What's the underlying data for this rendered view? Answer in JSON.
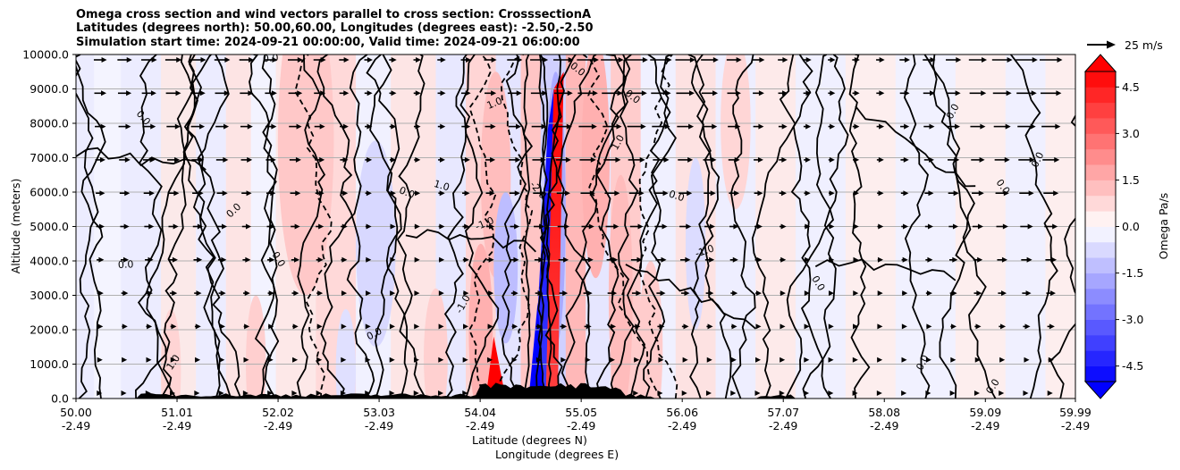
{
  "chart_data": {
    "type": "heatmap",
    "title_lines": [
      "Omega cross section and wind vectors parallel to cross section: CrosssectionA",
      "Latitudes (degrees north): 50.00,60.00, Longitudes (degrees east): -2.50,-2.50",
      "Simulation start time: 2024-09-21 00:00:00, Valid time: 2024-09-21 06:00:00"
    ],
    "ylabel": "Altitude (meters)",
    "xlabel": "Latitude (degrees N)",
    "xlabel2": "Longitude (degrees E)",
    "ylim": [
      0,
      10000
    ],
    "y_ticks": [
      "0.0",
      "1000.0",
      "2000.0",
      "3000.0",
      "4000.0",
      "5000.0",
      "6000.0",
      "7000.0",
      "8000.0",
      "9000.0",
      "10000.0"
    ],
    "x_ticks": [
      {
        "lat": "50.00",
        "lon": "-2.49"
      },
      {
        "lat": "51.01",
        "lon": "-2.49"
      },
      {
        "lat": "52.02",
        "lon": "-2.49"
      },
      {
        "lat": "53.03",
        "lon": "-2.49"
      },
      {
        "lat": "54.04",
        "lon": "-2.49"
      },
      {
        "lat": "55.05",
        "lon": "-2.49"
      },
      {
        "lat": "56.06",
        "lon": "-2.49"
      },
      {
        "lat": "57.07",
        "lon": "-2.49"
      },
      {
        "lat": "58.08",
        "lon": "-2.49"
      },
      {
        "lat": "59.09",
        "lon": "-2.49"
      },
      {
        "lat": "59.99",
        "lon": "-2.49"
      }
    ],
    "grid": "horizontal",
    "colorbar": {
      "label": "Omega Pa/s",
      "range": [
        -5.0,
        5.0
      ],
      "ticks": [
        "-4.5",
        "-3.0",
        "-1.5",
        "0.0",
        "1.5",
        "3.0",
        "4.5"
      ],
      "colormap": "bwr",
      "extend": "both"
    },
    "quiver_key": "25 m/s",
    "contour_labels": [
      "0.0",
      "1.0",
      "-1.0",
      "2.0",
      "-2.0"
    ],
    "colors": {
      "positive": "#ff0000",
      "negative": "#0000ff",
      "neutral": "#ffffff",
      "grid": "#b0b0b0"
    }
  }
}
